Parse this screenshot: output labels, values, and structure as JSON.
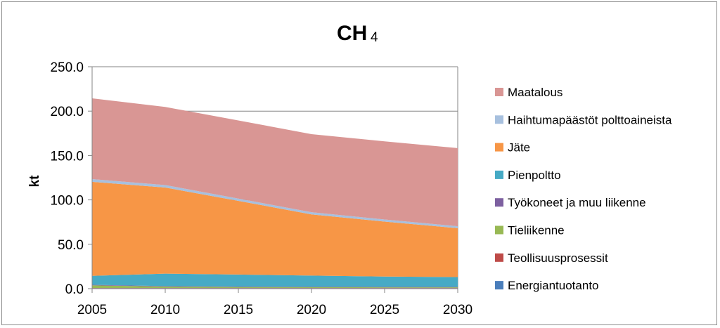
{
  "chart_data": {
    "type": "area",
    "stacked": true,
    "title_main": "CH",
    "title_sub": "4",
    "ylabel": "kt",
    "xlabel": "",
    "x": [
      2005,
      2010,
      2015,
      2020,
      2025,
      2030
    ],
    "ylim": [
      0,
      250
    ],
    "yticks": [
      "0.0",
      "50.0",
      "100.0",
      "150.0",
      "200.0",
      "250.0"
    ],
    "xticks": [
      "2005",
      "2010",
      "2015",
      "2020",
      "2025",
      "2030"
    ],
    "grid": "horizontal",
    "legend_position": "right",
    "series": [
      {
        "name": "Energiantuotanto",
        "color": "#4a7ebb",
        "values": [
          0.6,
          0.6,
          0.6,
          0.6,
          0.6,
          0.6
        ]
      },
      {
        "name": "Teollisuusprosessit",
        "color": "#be4b48",
        "values": [
          0.2,
          0.2,
          0.2,
          0.2,
          0.2,
          0.2
        ]
      },
      {
        "name": "Tieliikenne",
        "color": "#98b954",
        "values": [
          3.0,
          1.5,
          1.0,
          0.8,
          0.7,
          0.7
        ]
      },
      {
        "name": "Työkoneet ja muu liikenne",
        "color": "#7d60a0",
        "values": [
          0.6,
          0.6,
          0.6,
          0.6,
          0.6,
          0.6
        ]
      },
      {
        "name": "Pienpoltto",
        "color": "#46aac5",
        "values": [
          10.0,
          14.0,
          13.5,
          12.5,
          11.5,
          11.0
        ]
      },
      {
        "name": "Jäte",
        "color": "#f79646",
        "values": [
          106.0,
          97.0,
          83.0,
          69.0,
          62.0,
          55.0
        ]
      },
      {
        "name": "Haihtumapäästöt polttoaineista",
        "color": "#a7c0de",
        "values": [
          3.0,
          2.8,
          2.6,
          2.4,
          2.3,
          2.2
        ]
      },
      {
        "name": "Maatalous",
        "color": "#d99694",
        "values": [
          91.0,
          88.0,
          88.0,
          88.0,
          88.0,
          88.0
        ]
      }
    ]
  }
}
